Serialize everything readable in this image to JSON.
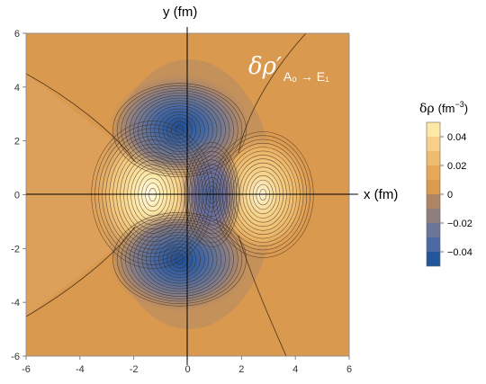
{
  "chart_data": {
    "type": "contour",
    "title": "",
    "xlabel": "x (fm)",
    "ylabel": "y (fm)",
    "xlim": [
      -6,
      6
    ],
    "ylim": [
      -6,
      6
    ],
    "x_ticks": [
      -6,
      -4,
      -2,
      0,
      2,
      4,
      6
    ],
    "y_ticks": [
      -6,
      -4,
      -2,
      0,
      2,
      4,
      6
    ],
    "x_tick_labels": [
      "-6",
      "-4",
      "-2",
      "0",
      "2",
      "4",
      "6"
    ],
    "y_tick_labels": [
      "-6",
      "-4",
      "-2",
      "0",
      "2",
      "4",
      "6"
    ],
    "annotation": {
      "main": "δρ′",
      "subscript": "A₀ → E₁"
    },
    "colorbar": {
      "title_symbol": "δρ",
      "title_unit": "(fm",
      "unit_exponent": "−3",
      "unit_close": ")",
      "tick_labels": [
        "0.04",
        "0.02",
        "0",
        "−0.02",
        "−0.04"
      ],
      "tick_values": [
        0.04,
        0.02,
        0,
        -0.02,
        -0.04
      ],
      "bands": [
        {
          "from": 0.05,
          "to": 0.04,
          "color": "#fde8a8"
        },
        {
          "from": 0.04,
          "to": 0.03,
          "color": "#f7d08a"
        },
        {
          "from": 0.03,
          "to": 0.02,
          "color": "#efbb6e"
        },
        {
          "from": 0.02,
          "to": 0.01,
          "color": "#e6a858"
        },
        {
          "from": 0.01,
          "to": 0.0,
          "color": "#dc9a50"
        },
        {
          "from": 0.0,
          "to": -0.01,
          "color": "#ad8565"
        },
        {
          "from": -0.01,
          "to": -0.02,
          "color": "#8f7e7e"
        },
        {
          "from": -0.02,
          "to": -0.03,
          "color": "#6a7597"
        },
        {
          "from": -0.03,
          "to": -0.04,
          "color": "#4c69a3"
        },
        {
          "from": -0.04,
          "to": -0.05,
          "color": "#22559a"
        }
      ]
    },
    "features": [
      {
        "kind": "maximum",
        "x": -1.3,
        "y": 0.0,
        "value": 0.05
      },
      {
        "kind": "maximum",
        "x": 2.8,
        "y": 0.0,
        "value": 0.045
      },
      {
        "kind": "minimum",
        "x": -0.3,
        "y": 2.4,
        "value": -0.05
      },
      {
        "kind": "minimum",
        "x": -0.3,
        "y": -2.4,
        "value": -0.05
      },
      {
        "kind": "minimum",
        "x": 0.9,
        "y": 0.0,
        "value": -0.035
      }
    ],
    "grid": false,
    "legend_position": "right"
  }
}
